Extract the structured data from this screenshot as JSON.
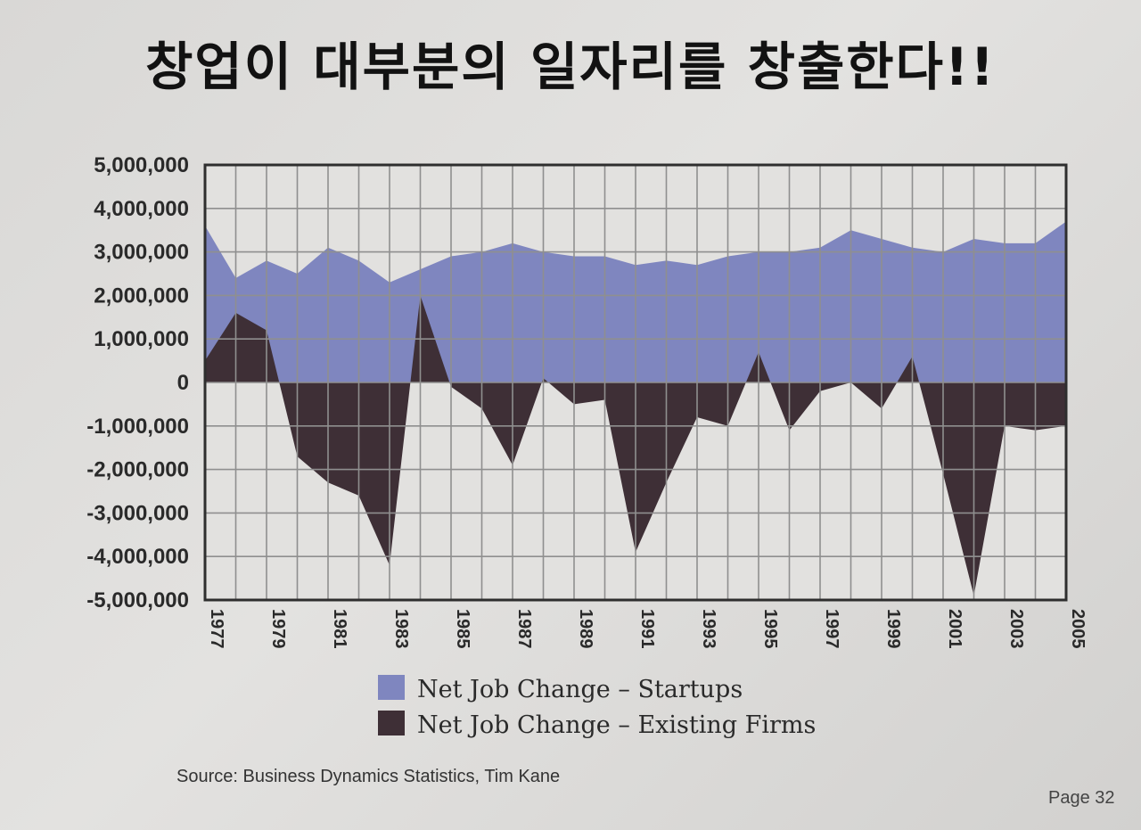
{
  "title": "창업이 대부분의 일자리를 창출한다!!",
  "source": "Source: Business Dynamics Statistics, Tim Kane",
  "page_label": "Page 32",
  "colors": {
    "startups": "#7f86bf",
    "existing": "#3e2f36",
    "grid": "#8f8f8f",
    "plot_bg": "#e2e1df",
    "border": "#2e2e2e"
  },
  "chart_data": {
    "type": "area",
    "title": "",
    "xlabel": "",
    "ylabel": "",
    "ylim": [
      -5000000,
      5000000
    ],
    "yticks": [
      5000000,
      4000000,
      3000000,
      2000000,
      1000000,
      0,
      -1000000,
      -2000000,
      -3000000,
      -4000000,
      -5000000
    ],
    "ytick_labels": [
      "5,000,000",
      "4,000,000",
      "3,000,000",
      "2,000,000",
      "1,000,000",
      "0",
      "-1,000,000",
      "-2,000,000",
      "-3,000,000",
      "-4,000,000",
      "-5,000,000"
    ],
    "xtick_labels": [
      "1977",
      "1979",
      "1981",
      "1983",
      "1985",
      "1987",
      "1989",
      "1991",
      "1993",
      "1995",
      "1997",
      "1999",
      "2001",
      "2003",
      "2005"
    ],
    "grid": true,
    "legend_position": "bottom",
    "x": [
      1977,
      1978,
      1979,
      1980,
      1981,
      1982,
      1983,
      1984,
      1985,
      1986,
      1987,
      1988,
      1989,
      1990,
      1991,
      1992,
      1993,
      1994,
      1995,
      1996,
      1997,
      1998,
      1999,
      2000,
      2001,
      2002,
      2003,
      2004,
      2005
    ],
    "series": [
      {
        "name": "Net Job Change – Startups",
        "values": [
          3600000,
          2400000,
          2800000,
          2500000,
          3100000,
          2800000,
          2300000,
          2600000,
          2900000,
          3000000,
          3200000,
          3000000,
          2900000,
          2900000,
          2700000,
          2800000,
          2700000,
          2900000,
          3000000,
          3000000,
          3100000,
          3500000,
          3300000,
          3100000,
          3000000,
          3300000,
          3200000,
          3200000,
          3700000
        ]
      },
      {
        "name": "Net Job Change – Existing Firms",
        "values": [
          500000,
          1600000,
          1200000,
          -1700000,
          -2300000,
          -2600000,
          -4200000,
          2000000,
          -100000,
          -600000,
          -1900000,
          100000,
          -500000,
          -400000,
          -3900000,
          -2300000,
          -800000,
          -1000000,
          700000,
          -1100000,
          -200000,
          0,
          -600000,
          600000,
          -2100000,
          -4900000,
          -1000000,
          -1100000,
          -1000000
        ]
      }
    ]
  }
}
